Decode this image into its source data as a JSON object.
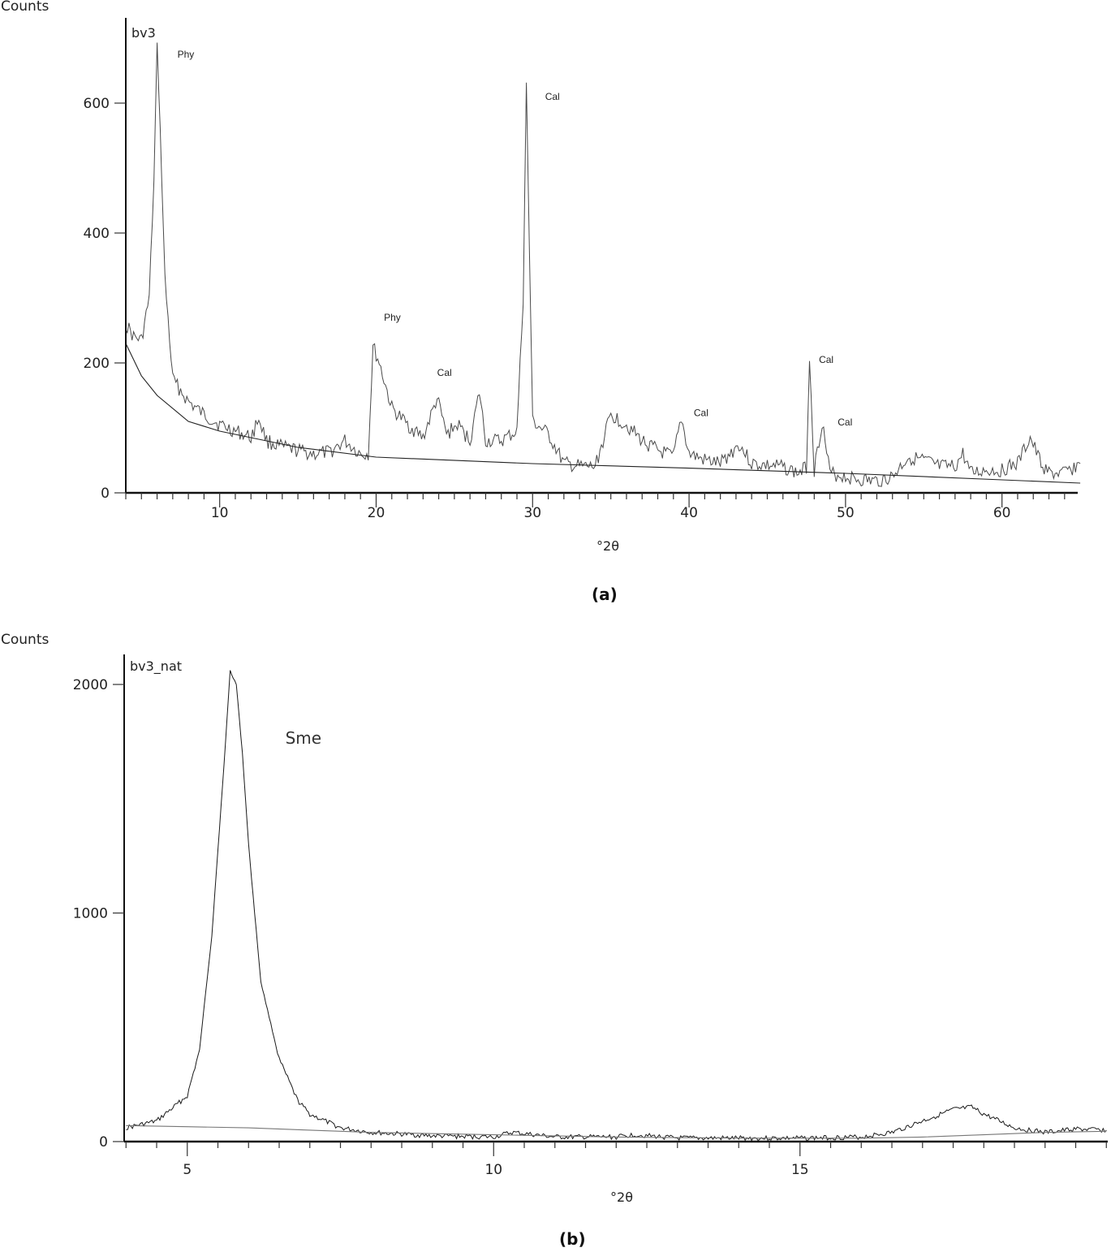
{
  "chart_data": [
    {
      "id": "a",
      "type": "line",
      "title": "bv3",
      "caption": "(a)",
      "xlabel": "°2θ",
      "ylabel": "Counts",
      "xlim": [
        4,
        65
      ],
      "ylim": [
        0,
        700
      ],
      "xticks": [
        10,
        20,
        30,
        40,
        50,
        60
      ],
      "yticks": [
        0,
        200,
        400,
        600
      ],
      "grid": false,
      "series": [
        {
          "name": "bv3 pattern",
          "x": [
            4,
            4.5,
            5,
            5.5,
            5.8,
            6.0,
            6.2,
            6.5,
            7,
            8,
            9,
            10,
            11,
            12,
            12.5,
            13,
            14,
            15,
            16,
            17,
            18,
            19,
            19.5,
            19.8,
            20.2,
            21,
            22,
            23,
            23.9,
            24.5,
            25.2,
            26,
            26.6,
            27,
            28,
            29,
            29.4,
            29.6,
            30,
            31,
            32,
            33,
            34,
            35,
            36,
            37,
            38,
            39,
            39.5,
            40,
            41,
            42,
            43.2,
            44,
            45,
            46,
            47,
            47.5,
            47.7,
            48,
            48.5,
            49,
            50,
            51,
            52,
            53,
            54,
            55,
            56,
            57,
            57.5,
            58,
            59,
            60,
            61,
            61.8,
            62.5,
            63,
            64,
            65
          ],
          "values": [
            260,
            240,
            235,
            300,
            480,
            690,
            560,
            330,
            175,
            140,
            120,
            105,
            95,
            85,
            115,
            80,
            70,
            65,
            60,
            62,
            80,
            60,
            60,
            225,
            200,
            130,
            105,
            85,
            145,
            90,
            105,
            80,
            155,
            80,
            80,
            95,
            300,
            630,
            110,
            90,
            45,
            40,
            40,
            120,
            105,
            80,
            65,
            55,
            115,
            60,
            50,
            45,
            75,
            45,
            42,
            40,
            30,
            40,
            210,
            35,
            110,
            30,
            25,
            20,
            18,
            25,
            55,
            50,
            40,
            40,
            60,
            30,
            35,
            35,
            45,
            85,
            45,
            30,
            30,
            45
          ]
        },
        {
          "name": "background",
          "x": [
            4,
            5,
            6,
            8,
            10,
            12,
            15,
            20,
            30,
            40,
            50,
            60,
            65
          ],
          "values": [
            230,
            180,
            150,
            110,
            95,
            85,
            70,
            55,
            45,
            38,
            30,
            20,
            15
          ]
        }
      ],
      "annotations": [
        {
          "text": "Phy",
          "x": 7.3,
          "y": 670
        },
        {
          "text": "Phy",
          "x": 20.5,
          "y": 265
        },
        {
          "text": "Cal",
          "x": 23.9,
          "y": 180
        },
        {
          "text": "Cal",
          "x": 30.8,
          "y": 605
        },
        {
          "text": "Cal",
          "x": 40.3,
          "y": 118
        },
        {
          "text": "Cal",
          "x": 48.3,
          "y": 200
        },
        {
          "text": "Cal",
          "x": 49.5,
          "y": 104
        }
      ]
    },
    {
      "id": "b",
      "type": "line",
      "title": "bv3_nat",
      "caption": "(b)",
      "xlabel": "°2θ",
      "ylabel": "Counts",
      "xlim": [
        4,
        20
      ],
      "ylim": [
        0,
        2100
      ],
      "xticks": [
        5,
        10,
        15
      ],
      "yticks": [
        0,
        1000,
        2000
      ],
      "grid": false,
      "series": [
        {
          "name": "bv3_nat pattern",
          "x": [
            4,
            4.5,
            5,
            5.2,
            5.4,
            5.6,
            5.7,
            5.8,
            5.9,
            6.0,
            6.2,
            6.5,
            6.8,
            7,
            7.5,
            8,
            9,
            10,
            10.3,
            11,
            12,
            12.3,
            13,
            14,
            15,
            16,
            16.5,
            17,
            17.5,
            17.8,
            18,
            18.5,
            19,
            19.5,
            20
          ],
          "values": [
            60,
            90,
            200,
            400,
            900,
            1650,
            2060,
            2000,
            1700,
            1300,
            700,
            360,
            180,
            120,
            60,
            40,
            25,
            20,
            40,
            20,
            20,
            30,
            15,
            15,
            15,
            20,
            40,
            90,
            140,
            150,
            120,
            60,
            40,
            55,
            50
          ]
        },
        {
          "name": "background",
          "x": [
            4,
            5,
            6,
            7,
            8,
            10,
            12,
            14,
            16,
            17,
            18,
            19,
            20
          ],
          "values": [
            70,
            65,
            60,
            50,
            40,
            30,
            20,
            15,
            15,
            20,
            30,
            40,
            45
          ]
        }
      ],
      "annotations": [
        {
          "text": "Sme",
          "x": 6.6,
          "y": 1740
        }
      ]
    }
  ],
  "panels": {
    "a": {
      "ylabel": "Counts",
      "series_name": "bv3",
      "xlabel": "°2θ",
      "caption": "(a)"
    },
    "b": {
      "ylabel": "Counts",
      "series_name": "bv3_nat",
      "xlabel": "°2θ",
      "caption": "(b)"
    }
  }
}
